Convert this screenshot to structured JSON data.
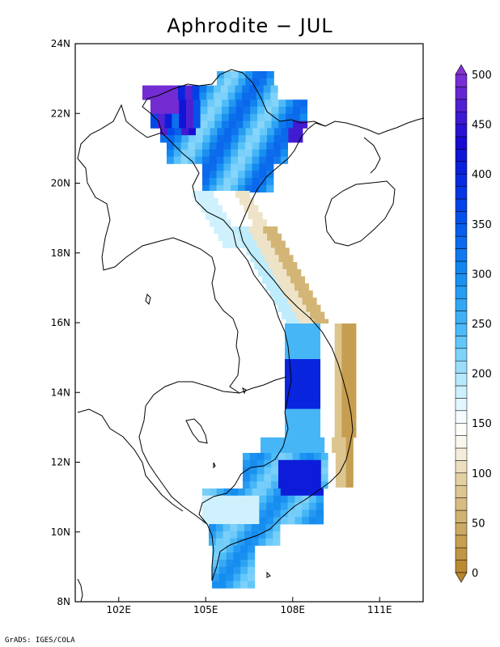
{
  "title": "Aphrodite − JUL",
  "footer": "GrADS: IGES/COLA",
  "map": {
    "y_ticks": [
      "24N",
      "22N",
      "20N",
      "18N",
      "16N",
      "14N",
      "12N",
      "10N",
      "8N"
    ],
    "x_ticks": [
      "102E",
      "105E",
      "108E",
      "111E"
    ],
    "lon_range": [
      100.5,
      112.5
    ],
    "lat_range": [
      8,
      24
    ]
  },
  "colorbar": {
    "labels": [
      "500",
      "450",
      "400",
      "350",
      "300",
      "250",
      "200",
      "150",
      "100",
      "50",
      "0"
    ],
    "levels": 40,
    "min": 0,
    "max": 500,
    "colors": {
      "low": "#b8862c",
      "mid_low": "#f0e6cc",
      "white": "#ffffff",
      "light_blue": "#a8e4f8",
      "blue": "#1590f0",
      "deep_blue": "#0010d0",
      "purple": "#7a2ed0"
    }
  }
}
